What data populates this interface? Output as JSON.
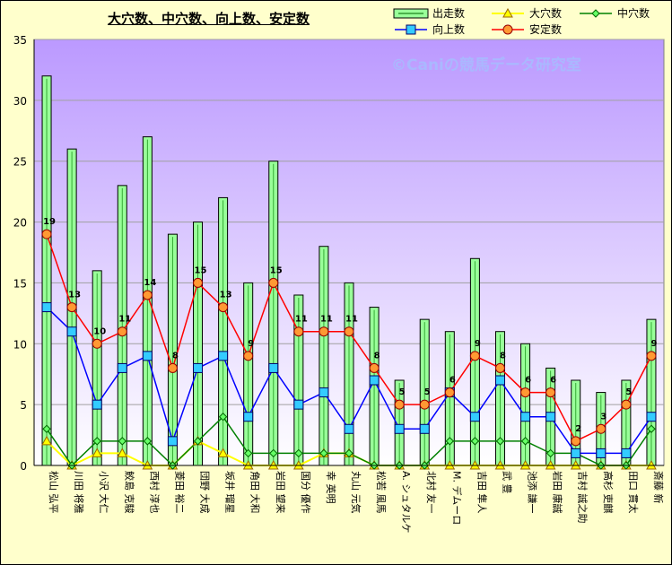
{
  "chart_data": {
    "type": "bar",
    "title": "大穴数、中穴数、向上数、安定数",
    "watermark": "©Caniの競馬データ研究室",
    "ylim": [
      0,
      35
    ],
    "yticks": [
      0,
      5,
      10,
      15,
      20,
      25,
      30,
      35
    ],
    "grid": true,
    "legend_position": "top-right",
    "categories": [
      "松山 弘平",
      "川田 将雅",
      "小沢 大仁",
      "鮫島 克駿",
      "西村 淳也",
      "菱田 裕二",
      "団野 大成",
      "坂井 瑠星",
      "角田 大和",
      "岩田 望来",
      "国分 優作",
      "幸 英明",
      "丸山 元気",
      "松若 風馬",
      "A. シュタルケ",
      "北村 友一",
      "M. デムーロ",
      "吉田 隼人",
      "武 豊",
      "池添 謙一",
      "岩田 康誠",
      "吉村 誠之助",
      "高杉 吏麒",
      "田口 貫太",
      "斎藤 新"
    ],
    "series": [
      {
        "name": "出走数",
        "kind": "bar",
        "color": "#99ff99",
        "values": [
          32,
          26,
          16,
          23,
          27,
          19,
          20,
          22,
          15,
          25,
          14,
          18,
          15,
          13,
          7,
          12,
          11,
          17,
          11,
          10,
          8,
          7,
          6,
          7,
          12
        ]
      },
      {
        "name": "大穴数",
        "kind": "line",
        "color": "#ffff00",
        "values": [
          2,
          0,
          1,
          1,
          0,
          0,
          2,
          1,
          0,
          0,
          0,
          1,
          1,
          0,
          0,
          0,
          0,
          0,
          0,
          0,
          0,
          0,
          0,
          0,
          0
        ]
      },
      {
        "name": "中穴数",
        "kind": "line",
        "color": "#008000",
        "values": [
          3,
          0,
          2,
          2,
          2,
          0,
          2,
          4,
          1,
          1,
          1,
          1,
          1,
          0,
          0,
          0,
          2,
          2,
          2,
          2,
          1,
          1,
          0,
          0,
          3
        ]
      },
      {
        "name": "向上数",
        "kind": "line",
        "color": "#0000ff",
        "values": [
          13,
          11,
          5,
          8,
          9,
          2,
          8,
          9,
          4,
          8,
          5,
          6,
          3,
          7,
          3,
          3,
          6,
          4,
          7,
          4,
          4,
          1,
          1,
          1,
          4
        ]
      },
      {
        "name": "安定数",
        "kind": "line",
        "color": "#ff0000",
        "values": [
          19,
          13,
          10,
          11,
          14,
          8,
          15,
          13,
          9,
          15,
          11,
          11,
          11,
          8,
          5,
          5,
          6,
          9,
          8,
          6,
          6,
          2,
          3,
          5,
          9
        ],
        "labels": true
      }
    ]
  }
}
